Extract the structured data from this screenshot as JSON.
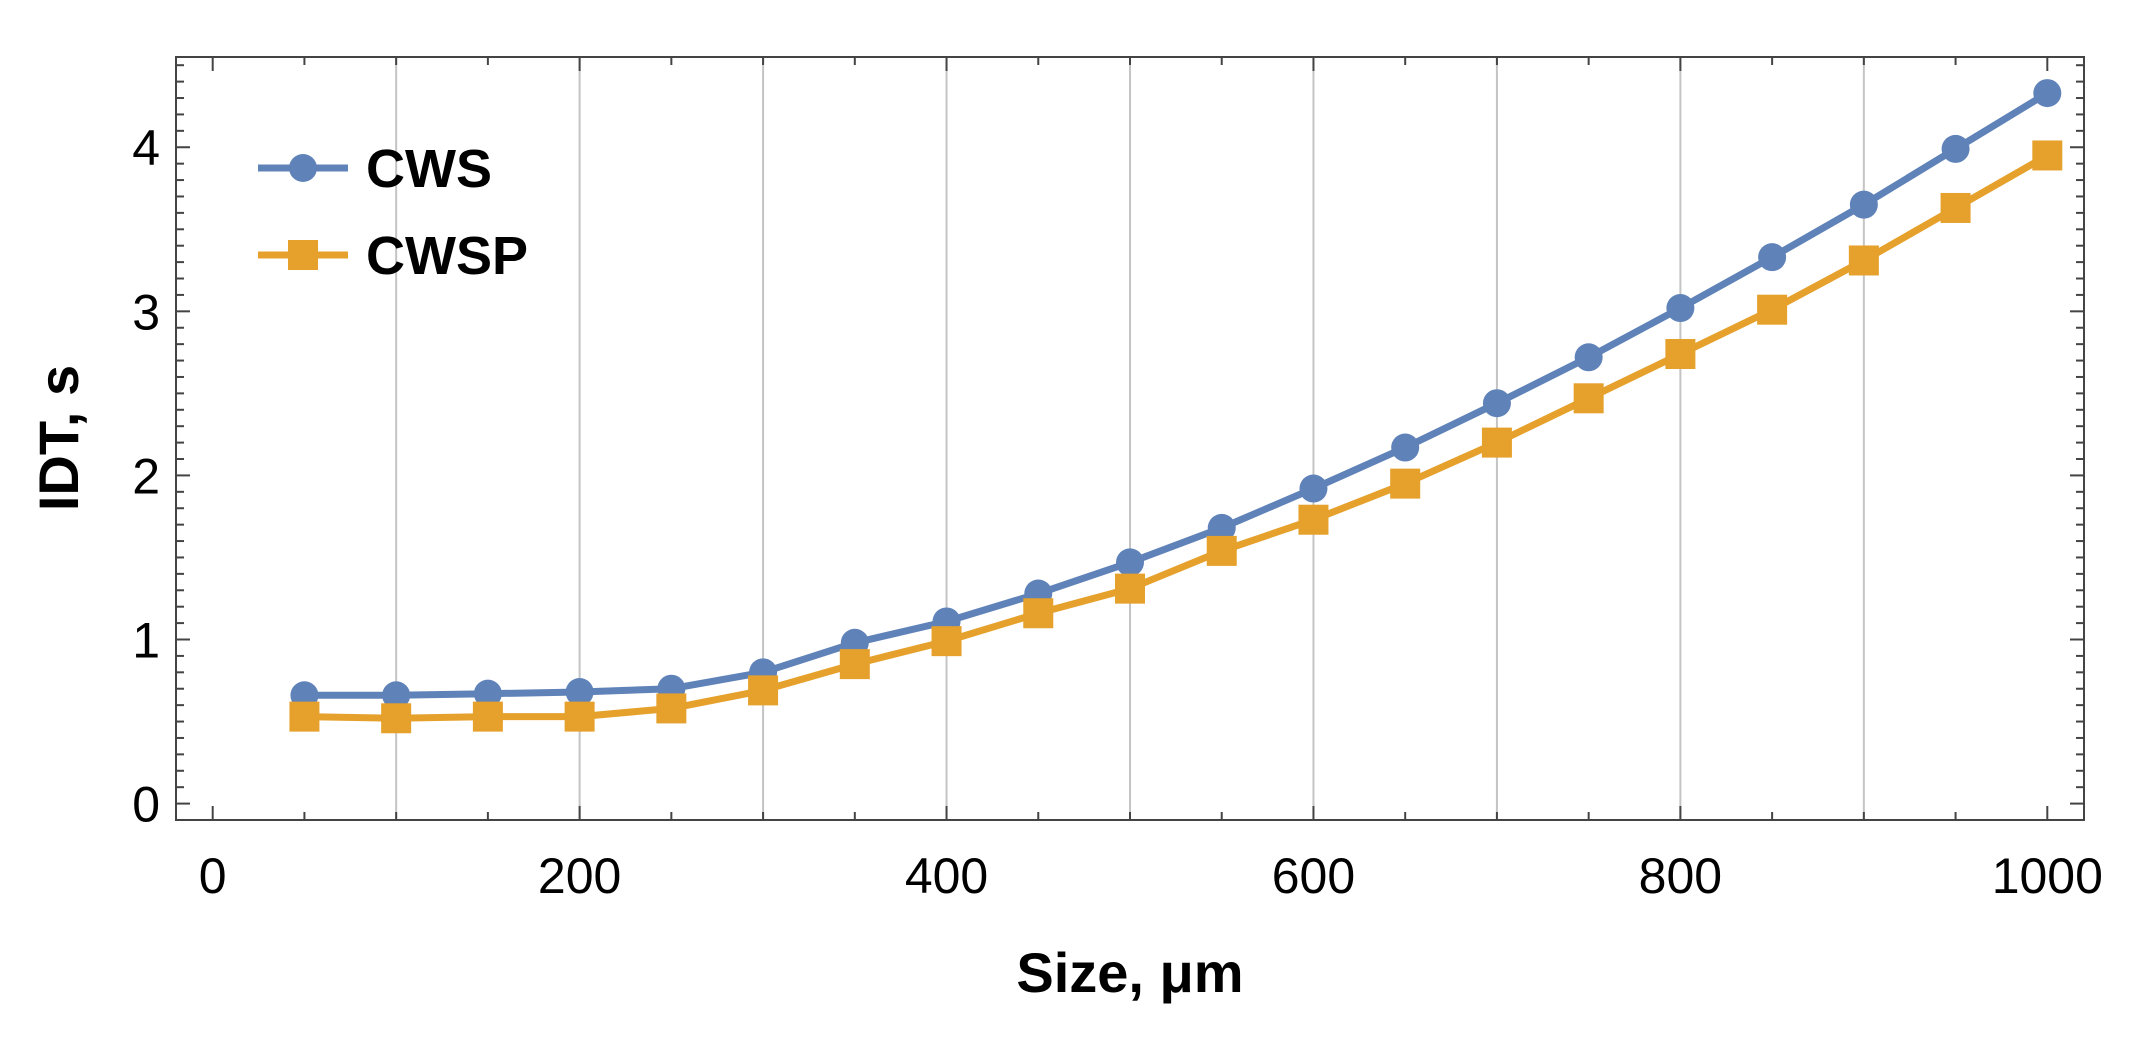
{
  "chart_data": {
    "type": "line",
    "title": "",
    "xlabel": "Size, μm",
    "ylabel": "IDT, s",
    "xlim": [
      -20,
      1020
    ],
    "ylim": [
      -0.1,
      4.55
    ],
    "xticks": [
      0,
      200,
      400,
      600,
      800,
      1000
    ],
    "xtick_labels": [
      "0",
      "200",
      "400",
      "600",
      "800",
      "1000"
    ],
    "yticks": [
      0,
      1,
      2,
      3,
      4
    ],
    "ytick_labels": [
      "0",
      "1",
      "2",
      "3",
      "4"
    ],
    "grid": "vertical lines at x = 100, 200, 300, 400, 500, 600, 700, 800, 900",
    "legend_position": "top-left",
    "x": [
      50,
      100,
      150,
      200,
      250,
      300,
      350,
      400,
      450,
      500,
      550,
      600,
      650,
      700,
      750,
      800,
      850,
      900,
      950,
      1000
    ],
    "series": [
      {
        "name": "CWS",
        "marker": "circle",
        "color": "#5F82B8",
        "values": [
          0.66,
          0.66,
          0.67,
          0.68,
          0.7,
          0.8,
          0.98,
          1.11,
          1.28,
          1.47,
          1.68,
          1.92,
          2.17,
          2.44,
          2.72,
          3.02,
          3.33,
          3.65,
          3.99,
          4.33
        ]
      },
      {
        "name": "CWSP",
        "marker": "square",
        "color": "#E5A12C",
        "values": [
          0.53,
          0.52,
          0.53,
          0.53,
          0.58,
          0.69,
          0.85,
          0.99,
          1.16,
          1.31,
          1.54,
          1.73,
          1.95,
          2.2,
          2.47,
          2.74,
          3.01,
          3.31,
          3.63,
          3.95
        ]
      }
    ]
  }
}
